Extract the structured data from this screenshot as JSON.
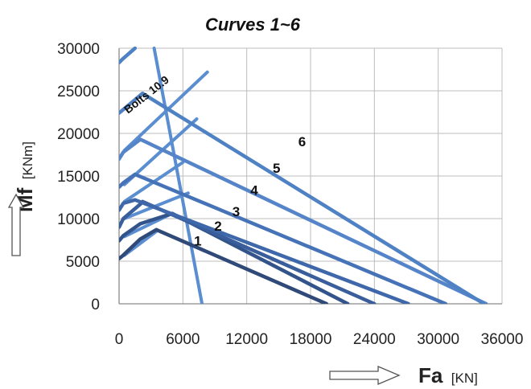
{
  "chart_data": {
    "type": "line",
    "title": "Curves 1~6",
    "xlabel": "Fa",
    "xunit": "[KN]",
    "ylabel": "Mf",
    "yunit": "[KNm]",
    "xlim": [
      0,
      36000
    ],
    "ylim": [
      0,
      30000
    ],
    "xticks": [
      0,
      6000,
      12000,
      18000,
      24000,
      30000,
      36000
    ],
    "yticks": [
      0,
      5000,
      10000,
      15000,
      20000,
      25000,
      30000
    ],
    "grid": true,
    "colors": [
      "#2f4a78",
      "#33548a",
      "#395e9b",
      "#3f68aa",
      "#4673b8",
      "#5585c8"
    ],
    "series": [
      {
        "name": "1",
        "label_at": [
          7400,
          6850
        ],
        "points": [
          [
            0,
            5300
          ],
          [
            300,
            5600
          ],
          [
            2000,
            7600
          ],
          [
            3500,
            8700
          ],
          [
            19500,
            0
          ]
        ]
      },
      {
        "name": "2",
        "label_at": [
          9300,
          8600
        ],
        "points": [
          [
            0,
            7400
          ],
          [
            400,
            8000
          ],
          [
            2000,
            9400
          ],
          [
            5000,
            10600
          ],
          [
            21500,
            0
          ]
        ]
      },
      {
        "name": "3",
        "label_at": [
          11000,
          10300
        ],
        "points": [
          [
            0,
            9000
          ],
          [
            400,
            10000
          ],
          [
            2000,
            11700
          ],
          [
            2200,
            12000
          ],
          [
            24000,
            0
          ]
        ]
      },
      {
        "name": "4",
        "label_at": [
          12700,
          12800
        ],
        "points": [
          [
            0,
            11000
          ],
          [
            400,
            11800
          ],
          [
            1500,
            12200
          ],
          [
            27200,
            0
          ]
        ]
      },
      {
        "name": "5",
        "label_at": [
          14800,
          15400
        ],
        "points": [
          [
            0,
            13700
          ],
          [
            400,
            14200
          ],
          [
            1500,
            15200
          ],
          [
            30700,
            0
          ]
        ]
      },
      {
        "name": "6",
        "label_at": [
          17200,
          18500
        ],
        "points": [
          [
            0,
            17000
          ],
          [
            400,
            17800
          ],
          [
            2000,
            19300
          ],
          [
            34500,
            0
          ]
        ]
      },
      {
        "name": "Bolts 10.9",
        "label_at": [
          2800,
          24200
        ],
        "points": [
          [
            0,
            22400
          ],
          [
            400,
            22800
          ],
          [
            2200,
            24700
          ],
          [
            34300,
            0
          ]
        ]
      },
      {
        "name": "",
        "label_at": null,
        "points": [
          [
            0,
            28300
          ],
          [
            300,
            28700
          ],
          [
            1500,
            30000
          ]
        ]
      }
    ],
    "bolt_lines": [
      [
        [
          500,
          5700
        ],
        [
          3500,
          8500
        ]
      ],
      [
        [
          500,
          7900
        ],
        [
          5000,
          10600
        ]
      ],
      [
        [
          500,
          10000
        ],
        [
          6500,
          13000
        ]
      ],
      [
        [
          500,
          12000
        ],
        [
          6000,
          16600
        ]
      ],
      [
        [
          500,
          14000
        ],
        [
          7300,
          21700
        ]
      ],
      [
        [
          500,
          18000
        ],
        [
          8300,
          27200
        ]
      ],
      [
        [
          3300,
          30000
        ],
        [
          7800,
          0
        ]
      ]
    ]
  }
}
